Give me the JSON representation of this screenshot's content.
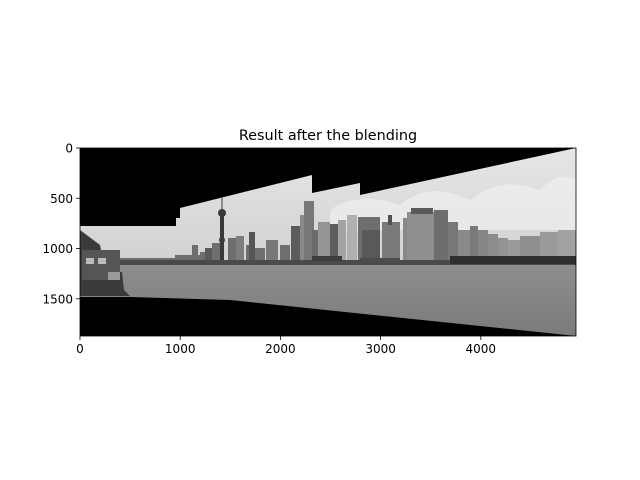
{
  "chart_data": {
    "type": "image",
    "title": "Result after the blending",
    "xlabel": "",
    "ylabel": "",
    "image_width": 4950,
    "image_height": 1870,
    "xlim": [
      0,
      4950
    ],
    "ylim": [
      1870,
      0
    ],
    "x_ticks": [
      0,
      1000,
      2000,
      3000,
      4000
    ],
    "y_ticks": [
      0,
      500,
      1000,
      1500
    ],
    "grid": false,
    "colormap": "gray",
    "content": "grayscale panorama of Shanghai Bund skyline across river, black masked border regions",
    "mask_top_edge": [
      [
        0,
        780
      ],
      [
        700,
        780
      ],
      [
        930,
        780
      ],
      [
        930,
        700
      ],
      [
        980,
        700
      ],
      [
        980,
        600
      ],
      [
        2330,
        270
      ],
      [
        2330,
        430
      ],
      [
        2800,
        330
      ],
      [
        2800,
        450
      ],
      [
        4950,
        0
      ]
    ],
    "mask_bottom_edge": [
      [
        0,
        1480
      ],
      [
        500,
        1480
      ],
      [
        1500,
        1510
      ],
      [
        4950,
        1870
      ]
    ]
  }
}
